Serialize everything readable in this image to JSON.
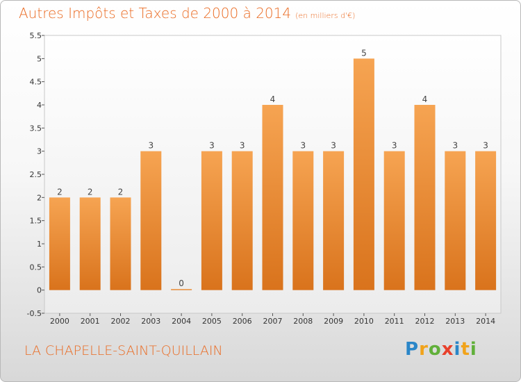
{
  "header": {
    "title": "Autres Impôts et Taxes de 2000 à 2014",
    "unit": "(en milliers d'€)"
  },
  "footer": {
    "commune": "LA CHAPELLE-SAINT-QUILLAIN"
  },
  "logo": {
    "letters": [
      "P",
      "r",
      "o",
      "x",
      "i",
      "t",
      "i"
    ],
    "colors": [
      "#2a86c8",
      "#f1a31b",
      "#61b03a",
      "#e8402b",
      "#2a86c8",
      "#f1a31b",
      "#61b03a"
    ]
  },
  "chart_data": {
    "type": "bar",
    "categories": [
      "2000",
      "2001",
      "2002",
      "2003",
      "2004",
      "2005",
      "2006",
      "2007",
      "2008",
      "2009",
      "2010",
      "2011",
      "2012",
      "2013",
      "2014"
    ],
    "values": [
      2,
      2,
      2,
      3,
      0,
      3,
      3,
      4,
      3,
      3,
      5,
      3,
      4,
      3,
      3
    ],
    "data_labels": [
      "2",
      "2",
      "2",
      "3",
      "0",
      "3",
      "3",
      "4",
      "3",
      "3",
      "5",
      "3",
      "4",
      "3",
      "3"
    ],
    "ylim": [
      -0.5,
      5.5
    ],
    "yticks": [
      "-0.5",
      "0",
      "0.5",
      "1",
      "1.5",
      "2",
      "2.5",
      "3",
      "3.5",
      "4",
      "4.5",
      "5",
      "5.5"
    ],
    "ytick_values": [
      -0.5,
      0,
      0.5,
      1,
      1.5,
      2,
      2.5,
      3,
      3.5,
      4,
      4.5,
      5,
      5.5
    ],
    "xlabel": "",
    "ylabel": "",
    "grid": false,
    "bar_color": "#f28c32"
  }
}
